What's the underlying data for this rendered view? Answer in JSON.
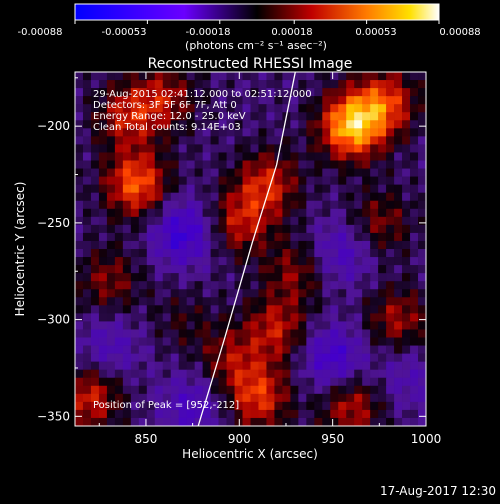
{
  "colorbar": {
    "ticks": [
      "-0.00088",
      "-0.00053",
      "-0.00018",
      "0.00018",
      "0.00053",
      "0.00088"
    ],
    "unit_label": "(photons cm⁻² s⁻¹ asec⁻²)"
  },
  "chart_data": {
    "type": "heatmap",
    "title": "Reconstructed RHESSI Image",
    "xlabel": "Heliocentric X (arcsec)",
    "ylabel": "Heliocentric Y (arcsec)",
    "xlim": [
      812,
      1000
    ],
    "ylim": [
      -355,
      -172
    ],
    "xticks": [
      850,
      900,
      950,
      1000
    ],
    "yticks": [
      -200,
      -250,
      -300,
      -350
    ],
    "colorbar_range": [
      -0.00088,
      0.00088
    ],
    "colormap": "blue-purple-black-red-yellow-white",
    "limb_curve": [
      [
        930,
        -172
      ],
      [
        920,
        -220
      ],
      [
        907,
        -260
      ],
      [
        892,
        -310
      ],
      [
        878,
        -355
      ]
    ],
    "hotspots": [
      {
        "x": 960,
        "y": -200,
        "value": 0.0008
      },
      {
        "x": 978,
        "y": -188,
        "value": 0.0005
      },
      {
        "x": 915,
        "y": -230,
        "value": 0.00045
      },
      {
        "x": 900,
        "y": -250,
        "value": 0.0004
      },
      {
        "x": 930,
        "y": -275,
        "value": 0.0003
      },
      {
        "x": 920,
        "y": -305,
        "value": 0.0004
      },
      {
        "x": 895,
        "y": -320,
        "value": 0.0003
      },
      {
        "x": 910,
        "y": -340,
        "value": 0.0005
      },
      {
        "x": 845,
        "y": -230,
        "value": 0.0006
      },
      {
        "x": 840,
        "y": -195,
        "value": 0.0004
      },
      {
        "x": 860,
        "y": -185,
        "value": 0.00035
      },
      {
        "x": 830,
        "y": -280,
        "value": 0.0003
      },
      {
        "x": 820,
        "y": -340,
        "value": 0.00045
      },
      {
        "x": 975,
        "y": -250,
        "value": 0.0003
      },
      {
        "x": 985,
        "y": -300,
        "value": 0.00035
      },
      {
        "x": 960,
        "y": -345,
        "value": 0.0004
      },
      {
        "x": 870,
        "y": -300,
        "value": 0.00015
      },
      {
        "x": 950,
        "y": -320,
        "value": -0.0004
      },
      {
        "x": 870,
        "y": -255,
        "value": -0.00045
      },
      {
        "x": 955,
        "y": -265,
        "value": -0.0003
      },
      {
        "x": 830,
        "y": -315,
        "value": -0.00025
      },
      {
        "x": 875,
        "y": -345,
        "value": -0.0003
      },
      {
        "x": 990,
        "y": -330,
        "value": -0.0002
      }
    ],
    "annotations": {
      "time": "29-Aug-2015 02:41:12.000 to 02:51:12.000",
      "detectors": "Detectors: 3F 5F 6F 7F, Att 0",
      "energy": "Energy Range: 12.0 - 25.0 keV",
      "clean": "Clean     Total counts: 9.14E+03",
      "peak": "Position of Peak = [952,-212]"
    }
  },
  "footer_timestamp": "17-Aug-2017 12:30"
}
